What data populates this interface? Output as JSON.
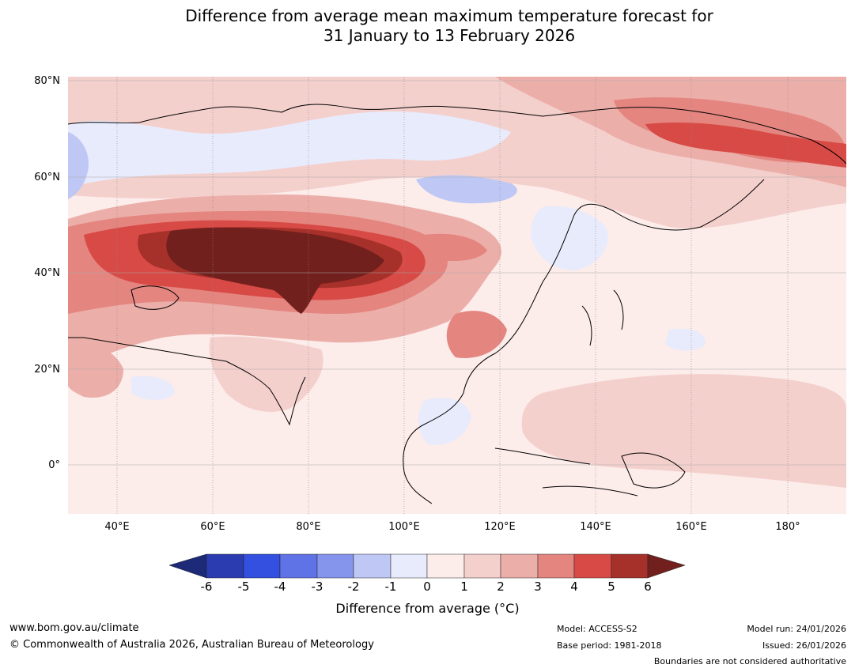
{
  "title": {
    "line1": "Difference from average mean maximum temperature forecast for",
    "line2": "31 January to 13 February 2026"
  },
  "map": {
    "lat_labels": [
      "80°N",
      "60°N",
      "40°N",
      "20°N",
      "0°"
    ],
    "lon_labels": [
      "40°E",
      "60°E",
      "80°E",
      "100°E",
      "120°E",
      "140°E",
      "160°E",
      "180°"
    ]
  },
  "legend": {
    "label": "Difference from average (°C)",
    "ticks": [
      "-6",
      "-5",
      "-4",
      "-3",
      "-2",
      "-1",
      "0",
      "1",
      "2",
      "3",
      "4",
      "5",
      "6"
    ],
    "colors": [
      "#1c2a78",
      "#2a3cb0",
      "#3350e0",
      "#5f73e6",
      "#8595ec",
      "#bfc8f4",
      "#e8ebfc",
      "#fcecea",
      "#f4d0cd",
      "#ecaea9",
      "#e48580",
      "#d84a45",
      "#a6302a",
      "#72201d"
    ]
  },
  "footer": {
    "url": "www.bom.gov.au/climate",
    "copyright": "© Commonwealth of Australia 2026, Australian Bureau of Meteorology",
    "model": "Model: ACCESS-S2",
    "base_period": "Base period: 1981-2018",
    "model_run": "Model run: 24/01/2026",
    "issued": "Issued: 26/01/2026",
    "disclaimer": "Boundaries are not considered authoritative"
  }
}
